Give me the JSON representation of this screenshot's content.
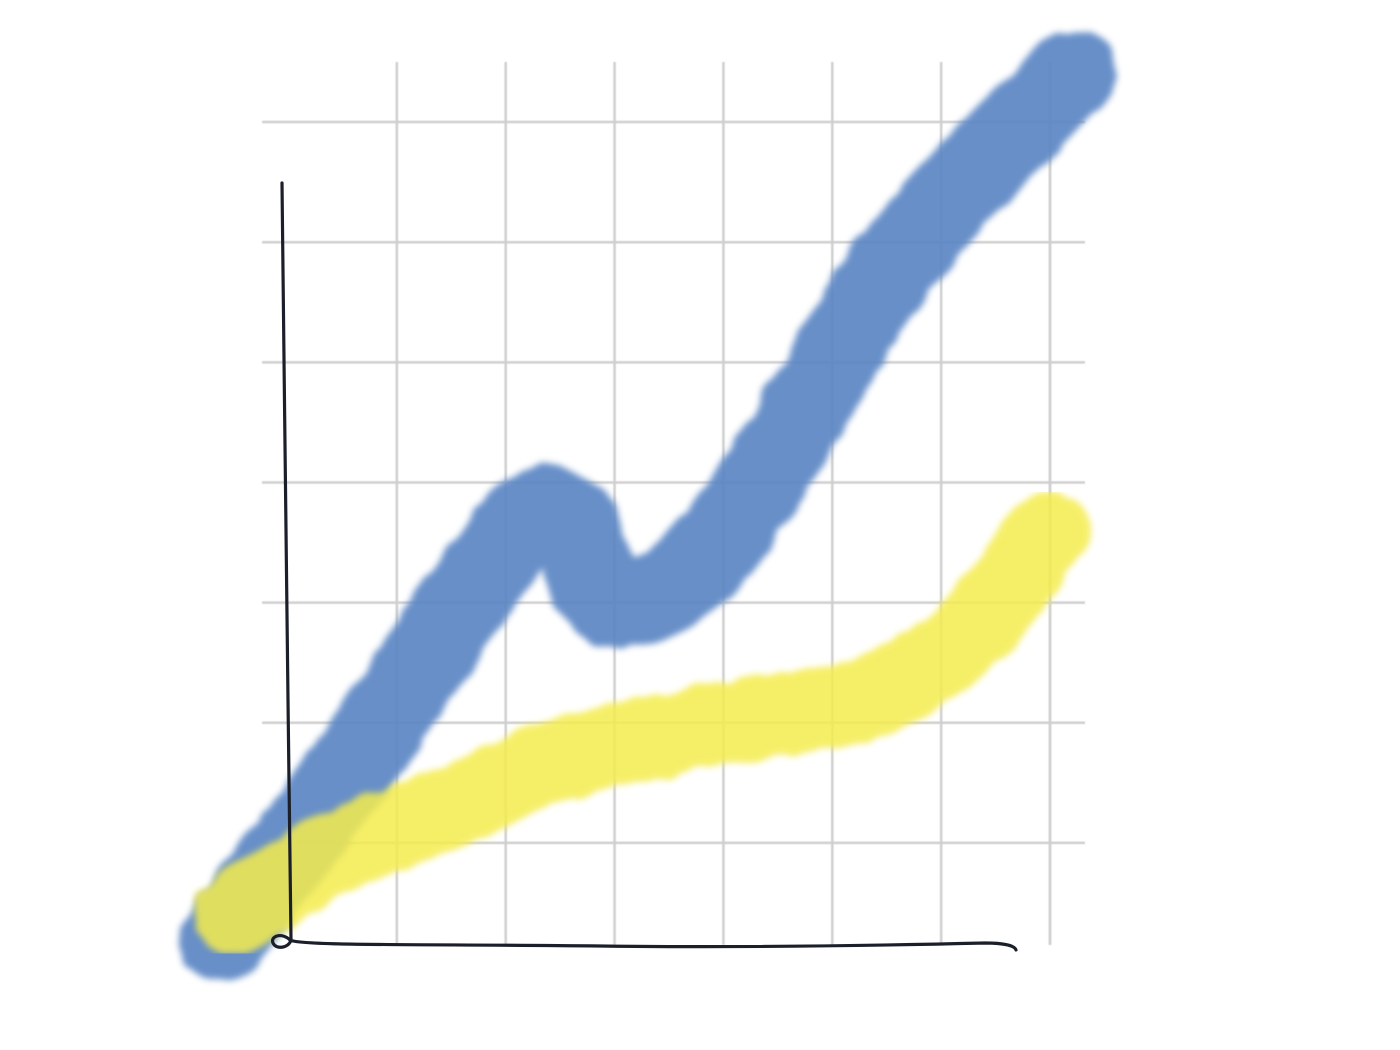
{
  "chart_data": {
    "type": "line",
    "title": "",
    "xlabel": "",
    "ylabel": "",
    "style": "hand-drawn watercolor sketch",
    "grid": true,
    "legend": "none",
    "axis_ticks_labeled": false,
    "x": [
      0,
      1,
      2,
      3,
      4,
      5,
      6,
      7,
      8
    ],
    "xlim": [
      0,
      8.3
    ],
    "ylim": [
      0,
      7.2
    ],
    "series": [
      {
        "color": "#5b86c4",
        "values": [
          0.05,
          1.5,
          3.2,
          2.0,
          2.7,
          4.9,
          6.5,
          6.95,
          null
        ],
        "points": [
          [
            -0.6,
            0.05
          ],
          [
            0.6,
            1.5
          ],
          [
            2.3,
            3.6
          ],
          [
            3.0,
            2.85
          ],
          [
            4.0,
            3.4
          ],
          [
            5.6,
            5.7
          ],
          [
            7.2,
            7.25
          ]
        ]
      },
      {
        "color": "#f4ec4d",
        "values": [
          0.5,
          1.1,
          1.5,
          1.75,
          1.85,
          2.0,
          2.9,
          3.5,
          null
        ],
        "points": [
          [
            -0.5,
            0.25
          ],
          [
            0.4,
            0.75
          ],
          [
            1.5,
            1.15
          ],
          [
            2.5,
            1.55
          ],
          [
            4.0,
            1.85
          ],
          [
            5.3,
            2.05
          ],
          [
            6.2,
            2.55
          ],
          [
            7.0,
            3.45
          ]
        ]
      }
    ],
    "gridlines": {
      "x": [
        1,
        2,
        3,
        4,
        5,
        6,
        7
      ],
      "y": [
        0.85,
        1.85,
        2.85,
        3.85,
        4.85,
        5.85,
        6.85
      ]
    }
  }
}
